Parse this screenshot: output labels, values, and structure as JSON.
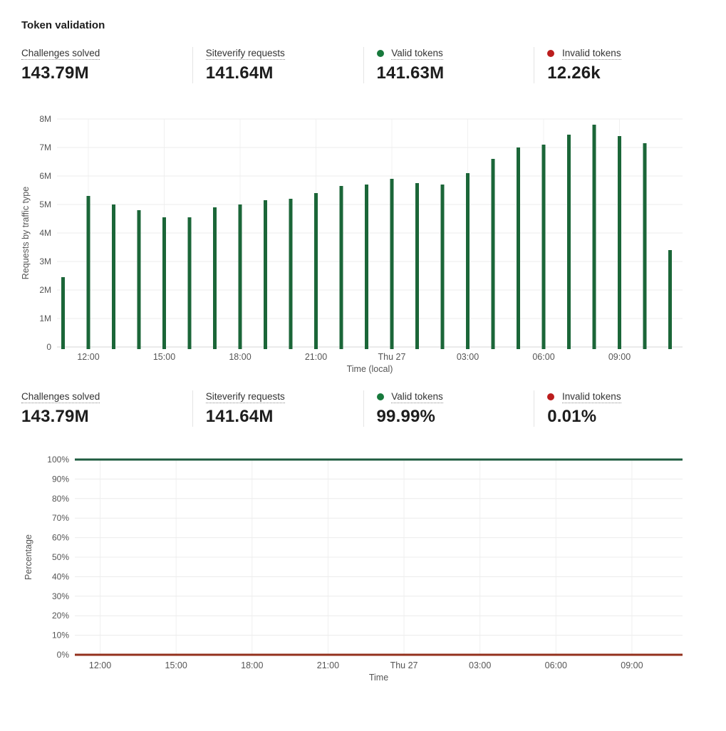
{
  "page": {
    "title": "Token validation"
  },
  "stats_top": {
    "items": [
      {
        "label": "Challenges solved",
        "value": "143.79M"
      },
      {
        "label": "Siteverify requests",
        "value": "141.64M"
      },
      {
        "label": "Valid tokens",
        "value": "141.63M",
        "dot_color": "#17793c"
      },
      {
        "label": "Invalid tokens",
        "value": "12.26k",
        "dot_color": "#bb1d1d"
      }
    ]
  },
  "stats_bottom": {
    "items": [
      {
        "label": "Challenges solved",
        "value": "143.79M"
      },
      {
        "label": "Siteverify requests",
        "value": "141.64M"
      },
      {
        "label": "Valid tokens",
        "value": "99.99%",
        "dot_color": "#17793c"
      },
      {
        "label": "Invalid tokens",
        "value": "0.01%",
        "dot_color": "#bb1d1d"
      }
    ]
  },
  "chart_data": [
    {
      "type": "bar",
      "title": "",
      "ylabel": "Requests by traffic type",
      "xlabel": "Time (local)",
      "ylim": [
        0,
        8
      ],
      "y_unit": "millions of requests",
      "yticks": [
        "0",
        "1M",
        "2M",
        "3M",
        "4M",
        "5M",
        "6M",
        "7M",
        "8M"
      ],
      "x_tick_labels": [
        "12:00",
        "15:00",
        "18:00",
        "21:00",
        "Thu 27",
        "03:00",
        "06:00",
        "09:00"
      ],
      "x_tick_indices": [
        1,
        4,
        7,
        10,
        13,
        16,
        19,
        22
      ],
      "grid": true,
      "legend_position": "none",
      "series": [
        {
          "name": "Valid tokens",
          "color": "#1b6638",
          "values_in_millions": [
            2.45,
            5.3,
            5.0,
            4.8,
            4.55,
            4.55,
            4.9,
            5.0,
            5.15,
            5.2,
            5.4,
            5.65,
            5.7,
            5.9,
            5.75,
            5.7,
            6.1,
            6.6,
            7.0,
            7.1,
            7.45,
            7.8,
            7.4,
            7.15,
            3.4
          ]
        }
      ]
    },
    {
      "type": "line",
      "title": "",
      "ylabel": "Percentage",
      "xlabel": "Time",
      "ylim": [
        0,
        100
      ],
      "yticks": [
        "0%",
        "10%",
        "20%",
        "30%",
        "40%",
        "50%",
        "60%",
        "70%",
        "80%",
        "90%",
        "100%"
      ],
      "x_tick_labels": [
        "12:00",
        "15:00",
        "18:00",
        "21:00",
        "Thu 27",
        "03:00",
        "06:00",
        "09:00"
      ],
      "x_tick_indices": [
        1,
        4,
        7,
        10,
        13,
        16,
        19,
        22
      ],
      "n_points": 25,
      "grid": true,
      "legend_position": "none",
      "series": [
        {
          "name": "Valid tokens",
          "color": "#1f5c40",
          "constant_percent": 100
        },
        {
          "name": "Invalid tokens",
          "color": "#93301c",
          "constant_percent": 0
        }
      ]
    }
  ]
}
